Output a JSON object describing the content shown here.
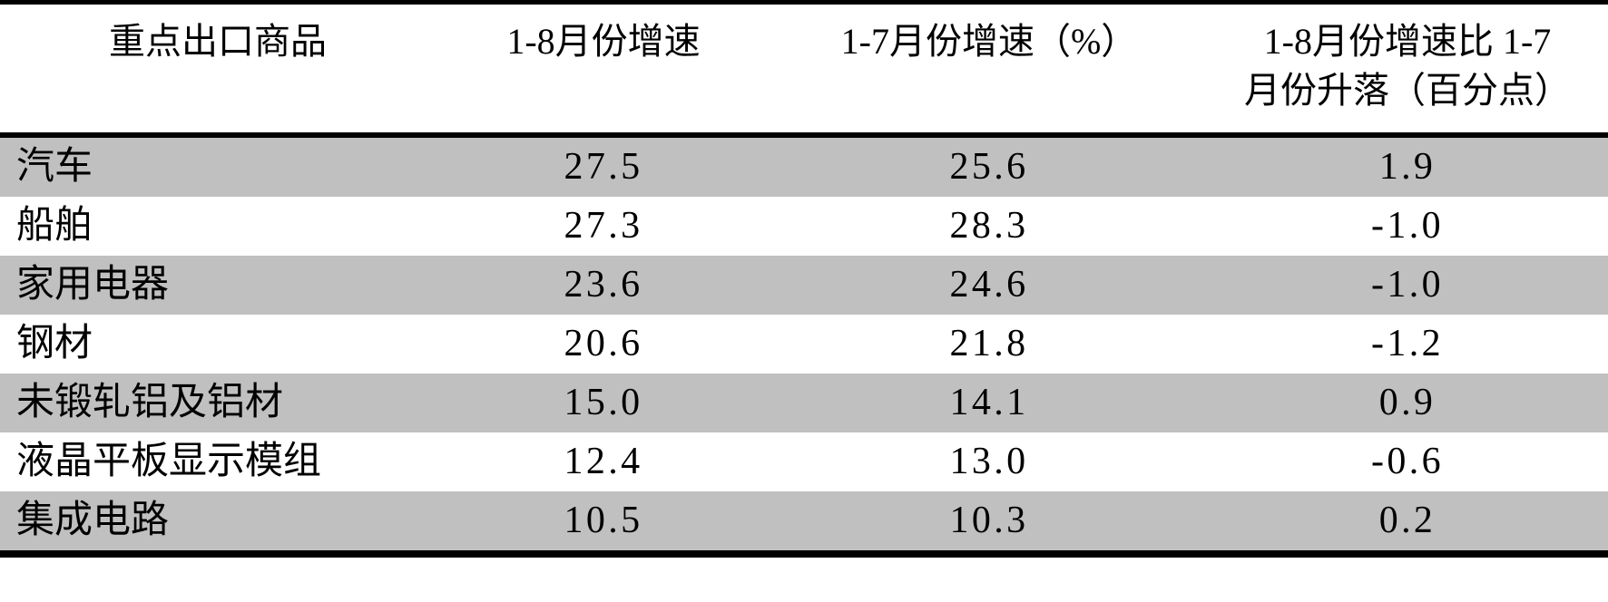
{
  "colors": {
    "stripe_row": "#c0c0c0",
    "rule": "#000000",
    "background": "#ffffff",
    "text": "#000000"
  },
  "table": {
    "headers": {
      "commodity": "重点出口商品",
      "jan_aug": "1-8月份增速",
      "jan_jul": "1-7月份增速（%）",
      "change_line1": "1-8月份增速比 1-7",
      "change_line2": "月份升落（百分点）"
    },
    "rows": [
      {
        "commodity": "汽车",
        "jan_aug": "27.5",
        "jan_jul": "25.6",
        "change": "1.9"
      },
      {
        "commodity": "船舶",
        "jan_aug": "27.3",
        "jan_jul": "28.3",
        "change": "-1.0"
      },
      {
        "commodity": "家用电器",
        "jan_aug": "23.6",
        "jan_jul": "24.6",
        "change": "-1.0"
      },
      {
        "commodity": "钢材",
        "jan_aug": "20.6",
        "jan_jul": "21.8",
        "change": "-1.2"
      },
      {
        "commodity": "未锻轧铝及铝材",
        "jan_aug": "15.0",
        "jan_jul": "14.1",
        "change": "0.9"
      },
      {
        "commodity": "液晶平板显示模组",
        "jan_aug": "12.4",
        "jan_jul": "13.0",
        "change": "-0.6"
      },
      {
        "commodity": "集成电路",
        "jan_aug": "10.5",
        "jan_jul": "10.3",
        "change": "0.2"
      }
    ]
  },
  "chart_data": {
    "type": "table",
    "columns": [
      "重点出口商品",
      "1-8月份增速",
      "1-7月份增速（%）",
      "1-8月份增速比1-7月份升落（百分点）"
    ],
    "rows": [
      [
        "汽车",
        27.5,
        25.6,
        1.9
      ],
      [
        "船舶",
        27.3,
        28.3,
        -1.0
      ],
      [
        "家用电器",
        23.6,
        24.6,
        -1.0
      ],
      [
        "钢材",
        20.6,
        21.8,
        -1.2
      ],
      [
        "未锻轧铝及铝材",
        15.0,
        14.1,
        0.9
      ],
      [
        "液晶平板显示模组",
        12.4,
        13.0,
        -0.6
      ],
      [
        "集成电路",
        10.5,
        10.3,
        0.2
      ]
    ]
  }
}
